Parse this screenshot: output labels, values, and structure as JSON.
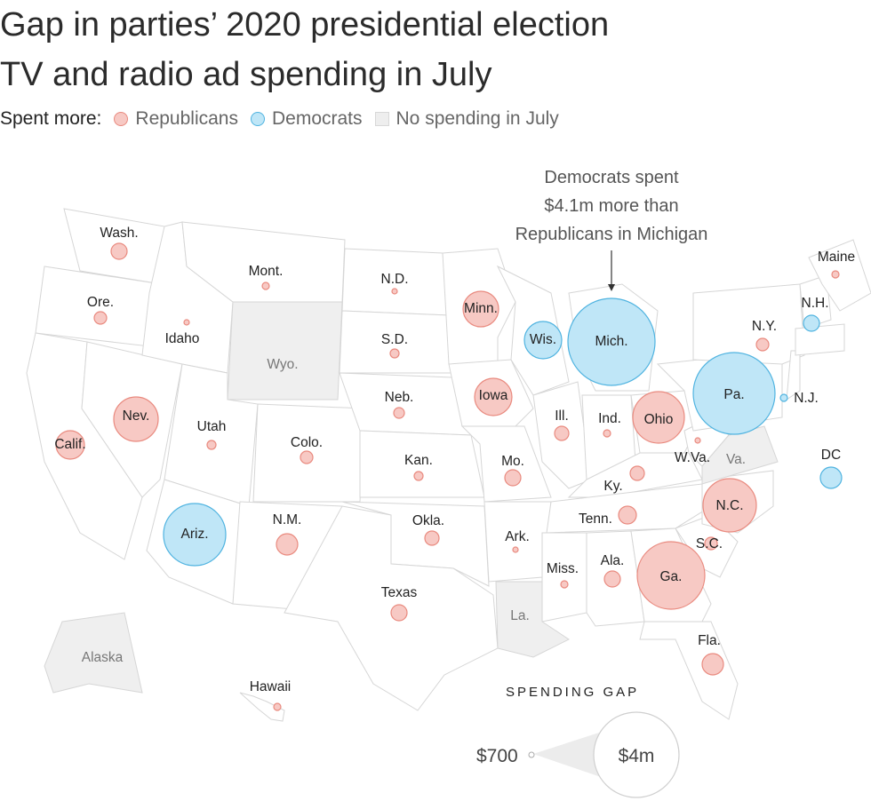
{
  "title_line1": "Gap in parties’ 2020 presidential election",
  "title_line2": "TV and radio ad spending in July",
  "legend": {
    "label": "Spent more:",
    "republicans": "Republicans",
    "democrats": "Democrats",
    "none": "No spending in July"
  },
  "colors": {
    "republican": "#f7c9c4",
    "democrat": "#bfe6f7",
    "no_spending": "#efefef"
  },
  "annotation": {
    "line1": "Democrats spent",
    "line2": "$4.1m more than",
    "line3": "Republicans in Michigan"
  },
  "size_legend": {
    "title": "SPENDING GAP",
    "min": "$700",
    "max": "$4m"
  },
  "no_spending_states": [
    "Wyo.",
    "Va.",
    "La.",
    "Alaska"
  ],
  "states": [
    {
      "label": "Wash.",
      "party": "rep"
    },
    {
      "label": "Ore.",
      "party": "rep"
    },
    {
      "label": "Calif.",
      "party": "rep"
    },
    {
      "label": "Nev.",
      "party": "rep"
    },
    {
      "label": "Idaho",
      "party": "rep"
    },
    {
      "label": "Mont.",
      "party": "rep"
    },
    {
      "label": "Utah",
      "party": "rep"
    },
    {
      "label": "Ariz.",
      "party": "dem"
    },
    {
      "label": "Colo.",
      "party": "rep"
    },
    {
      "label": "N.M.",
      "party": "rep"
    },
    {
      "label": "N.D.",
      "party": "rep"
    },
    {
      "label": "S.D.",
      "party": "rep"
    },
    {
      "label": "Neb.",
      "party": "rep"
    },
    {
      "label": "Kan.",
      "party": "rep"
    },
    {
      "label": "Okla.",
      "party": "rep"
    },
    {
      "label": "Texas",
      "party": "rep"
    },
    {
      "label": "Minn.",
      "party": "rep"
    },
    {
      "label": "Iowa",
      "party": "rep"
    },
    {
      "label": "Mo.",
      "party": "rep"
    },
    {
      "label": "Ark.",
      "party": "rep"
    },
    {
      "label": "Wis.",
      "party": "dem"
    },
    {
      "label": "Ill.",
      "party": "rep"
    },
    {
      "label": "Mich.",
      "party": "dem"
    },
    {
      "label": "Ind.",
      "party": "rep"
    },
    {
      "label": "Ohio",
      "party": "rep"
    },
    {
      "label": "Ky.",
      "party": "rep"
    },
    {
      "label": "Tenn.",
      "party": "rep"
    },
    {
      "label": "Miss.",
      "party": "rep"
    },
    {
      "label": "Ala.",
      "party": "rep"
    },
    {
      "label": "Ga.",
      "party": "rep"
    },
    {
      "label": "Fla.",
      "party": "rep"
    },
    {
      "label": "S.C.",
      "party": "rep"
    },
    {
      "label": "N.C.",
      "party": "rep"
    },
    {
      "label": "W.Va.",
      "party": "rep"
    },
    {
      "label": "Pa.",
      "party": "dem"
    },
    {
      "label": "N.Y.",
      "party": "rep"
    },
    {
      "label": "N.J.",
      "party": "dem"
    },
    {
      "label": "N.H.",
      "party": "dem"
    },
    {
      "label": "Maine",
      "party": "rep"
    },
    {
      "label": "DC",
      "party": "dem"
    },
    {
      "label": "Hawaii",
      "party": "rep"
    }
  ]
}
